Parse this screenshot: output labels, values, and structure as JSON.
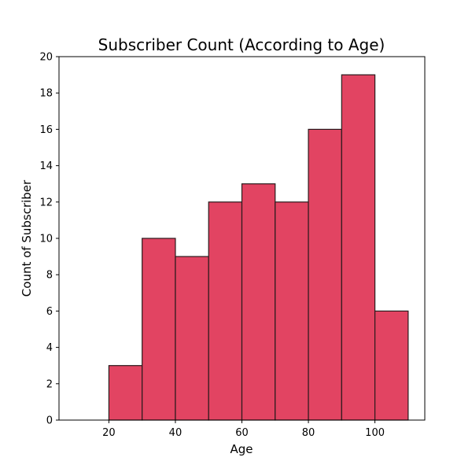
{
  "chart_data": {
    "type": "bar",
    "title": "Subscriber Count (According to Age)",
    "xlabel": "Age",
    "ylabel": "Count of Subscriber",
    "bins": [
      {
        "start": 10,
        "end": 20,
        "value": 0
      },
      {
        "start": 20,
        "end": 30,
        "value": 3
      },
      {
        "start": 30,
        "end": 40,
        "value": 10
      },
      {
        "start": 40,
        "end": 50,
        "value": 9
      },
      {
        "start": 50,
        "end": 60,
        "value": 12
      },
      {
        "start": 60,
        "end": 70,
        "value": 13
      },
      {
        "start": 70,
        "end": 80,
        "value": 12
      },
      {
        "start": 80,
        "end": 90,
        "value": 16
      },
      {
        "start": 90,
        "end": 100,
        "value": 19
      },
      {
        "start": 100,
        "end": 110,
        "value": 6
      }
    ],
    "xlim": [
      5,
      115
    ],
    "ylim": [
      0,
      20
    ],
    "xticks": [
      20,
      40,
      60,
      80,
      100
    ],
    "yticks": [
      0,
      2,
      4,
      6,
      8,
      10,
      12,
      14,
      16,
      18,
      20
    ],
    "bar_color": "#e24462",
    "edge_color": "#2a1a1c",
    "grid": false,
    "legend": "none"
  }
}
